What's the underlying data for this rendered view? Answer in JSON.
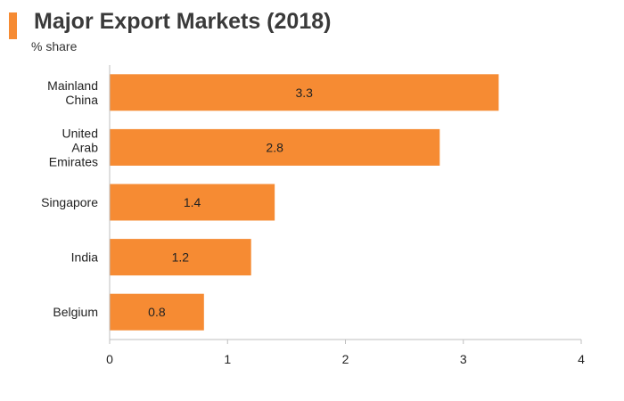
{
  "header": {
    "title": "Major Export Markets (2018)",
    "subtitle": "% share",
    "accent_color": "#f68b33"
  },
  "chart_data": {
    "type": "bar",
    "orientation": "horizontal",
    "title": "Major Export Markets (2018)",
    "subtitle": "% share",
    "categories": [
      "Mainland China",
      "United Arab Emirates",
      "Singapore",
      "India",
      "Belgium"
    ],
    "category_lines": [
      [
        "Mainland",
        "China"
      ],
      [
        "United",
        "Arab",
        "Emirates"
      ],
      [
        "Singapore"
      ],
      [
        "India"
      ],
      [
        "Belgium"
      ]
    ],
    "values": [
      3.3,
      2.8,
      1.4,
      1.2,
      0.8
    ],
    "data_labels": [
      "3.3",
      "2.8",
      "1.4",
      "1.2",
      "0.8"
    ],
    "xlim": [
      0,
      4
    ],
    "xticks": [
      0,
      1,
      2,
      3,
      4
    ],
    "xtick_labels": [
      "0",
      "1",
      "2",
      "3",
      "4"
    ],
    "xlabel": "",
    "ylabel": "",
    "grid": false,
    "legend": "none",
    "bar_color": "#f68b33",
    "axis_color": "#bfbfbf"
  }
}
